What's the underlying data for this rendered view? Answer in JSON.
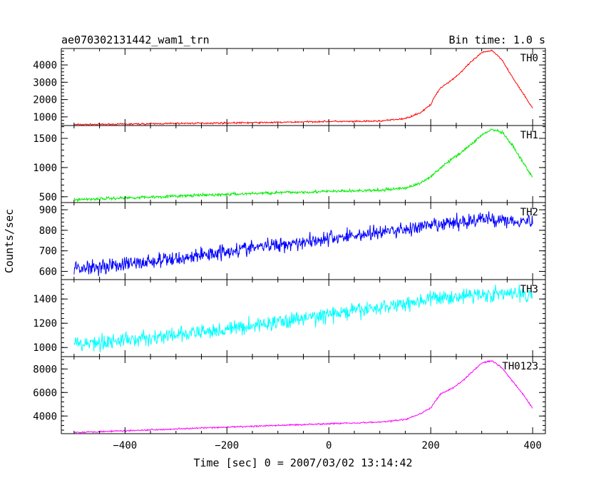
{
  "chart_data": {
    "type": "line",
    "title": "ae070302131442_wam1_trn",
    "bin_label": "Bin time: 1.0 s",
    "xlabel": "Time [sec] 0 = 2007/03/02 13:14:42",
    "ylabel": "Counts/sec",
    "xlim": [
      -525,
      425
    ],
    "x_ticks": [
      -400,
      -200,
      0,
      200,
      400
    ],
    "x_tick_labels": [
      "−400",
      "−200",
      "0",
      "200",
      "400"
    ],
    "grid": false,
    "panels": [
      {
        "name": "TH0",
        "color": "#ff0000",
        "ylim": [
          500,
          4950
        ],
        "y_ticks": [
          1000,
          2000,
          3000,
          4000
        ],
        "y_tick_labels": [
          "1000",
          "2000",
          "3000",
          "4000"
        ],
        "noise": 40,
        "x": [
          -500,
          -400,
          -300,
          -200,
          -100,
          -50,
          0,
          50,
          100,
          150,
          180,
          200,
          210,
          220,
          240,
          260,
          280,
          300,
          320,
          340,
          360,
          380,
          400
        ],
        "y": [
          550,
          580,
          620,
          650,
          680,
          710,
          740,
          730,
          760,
          900,
          1250,
          1700,
          2300,
          2700,
          3100,
          3600,
          4200,
          4700,
          4850,
          4300,
          3300,
          2400,
          1500
        ]
      },
      {
        "name": "TH1",
        "color": "#00ee00",
        "ylim": [
          400,
          1720
        ],
        "y_ticks": [
          500,
          1000,
          1500
        ],
        "y_tick_labels": [
          "500",
          "1000",
          "1500"
        ],
        "noise": 22,
        "x": [
          -500,
          -400,
          -300,
          -200,
          -100,
          0,
          100,
          150,
          180,
          200,
          220,
          250,
          280,
          300,
          320,
          340,
          360,
          380,
          400
        ],
        "y": [
          450,
          480,
          510,
          540,
          570,
          590,
          610,
          650,
          730,
          850,
          1000,
          1200,
          1400,
          1560,
          1650,
          1600,
          1380,
          1100,
          830
        ]
      },
      {
        "name": "TH2",
        "color": "#0000ff",
        "ylim": [
          560,
          935
        ],
        "y_ticks": [
          600,
          700,
          800,
          900
        ],
        "y_tick_labels": [
          "600",
          "700",
          "800",
          "900"
        ],
        "noise": 32,
        "x": [
          -500,
          -400,
          -300,
          -200,
          -100,
          0,
          100,
          200,
          300,
          400
        ],
        "y": [
          615,
          635,
          660,
          700,
          730,
          760,
          790,
          820,
          855,
          845
        ]
      },
      {
        "name": "TH3",
        "color": "#00ffff",
        "ylim": [
          925,
          1560
        ],
        "y_ticks": [
          1000,
          1200,
          1400
        ],
        "y_tick_labels": [
          "1000",
          "1200",
          "1400"
        ],
        "noise": 55,
        "x": [
          -500,
          -400,
          -300,
          -200,
          -100,
          0,
          100,
          200,
          300,
          400
        ],
        "y": [
          1030,
          1060,
          1100,
          1150,
          1210,
          1270,
          1330,
          1400,
          1440,
          1440
        ]
      },
      {
        "name": "TH0123",
        "color": "#ff00ff",
        "ylim": [
          2500,
          9050
        ],
        "y_ticks": [
          4000,
          6000,
          8000
        ],
        "y_tick_labels": [
          "4000",
          "6000",
          "8000"
        ],
        "noise": 55,
        "x": [
          -500,
          -400,
          -300,
          -200,
          -100,
          0,
          100,
          150,
          180,
          200,
          220,
          240,
          260,
          280,
          300,
          320,
          340,
          360,
          380,
          400
        ],
        "y": [
          2600,
          2750,
          2900,
          3050,
          3200,
          3350,
          3480,
          3700,
          4200,
          4700,
          5900,
          6300,
          6900,
          7700,
          8500,
          8700,
          8100,
          7000,
          5900,
          4650
        ]
      }
    ]
  }
}
